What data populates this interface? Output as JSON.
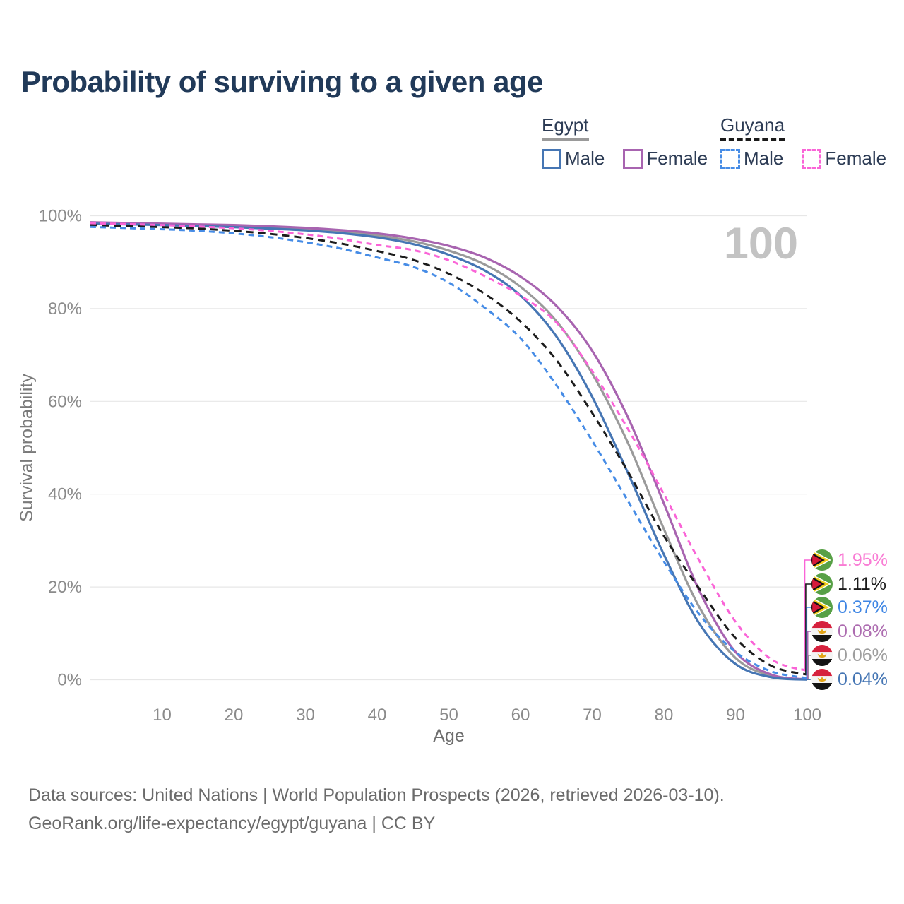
{
  "title": "Probability of surviving to a given age",
  "age_indicator": "100",
  "legend": {
    "groups": [
      {
        "label": "Egypt",
        "line_style": "solid",
        "underline_color": "#9a9a9a"
      },
      {
        "label": "Guyana",
        "line_style": "dashed",
        "underline_color": "#1a1a1a"
      }
    ],
    "items": [
      {
        "label": "Male",
        "group": "Egypt",
        "color": "#4676b4",
        "dashed": false
      },
      {
        "label": "Female",
        "group": "Egypt",
        "color": "#a864b0",
        "dashed": false
      },
      {
        "label": "Male",
        "group": "Guyana",
        "color": "#468ce6",
        "dashed": true
      },
      {
        "label": "Female",
        "group": "Guyana",
        "color": "#fa64d7",
        "dashed": true
      }
    ]
  },
  "chart_data": {
    "type": "line",
    "title": "Probability of surviving to a given age",
    "xlabel": "Age",
    "ylabel": "Survival probability",
    "xlim": [
      0,
      100
    ],
    "ylim": [
      0,
      100
    ],
    "grid": true,
    "x_ticks": [
      "10",
      "20",
      "30",
      "40",
      "50",
      "60",
      "70",
      "80",
      "90",
      "100"
    ],
    "y_ticks": [
      "0%",
      "20%",
      "40%",
      "60%",
      "80%",
      "100%"
    ],
    "ages": [
      0,
      5,
      10,
      15,
      20,
      25,
      30,
      35,
      40,
      45,
      50,
      55,
      60,
      65,
      70,
      75,
      80,
      85,
      90,
      95,
      100
    ],
    "series": [
      {
        "name": "Egypt Both sexes",
        "country": "Egypt",
        "sex": "Both sexes",
        "color": "#9a9a9a",
        "dashed": false,
        "values": [
          98.4,
          98.25,
          98.1,
          97.95,
          97.75,
          97.5,
          97.1,
          96.55,
          95.75,
          94.5,
          92.5,
          89.5,
          84.7,
          77.3,
          66.0,
          51.0,
          32.5,
          15.5,
          4.7,
          0.85,
          0.06
        ]
      },
      {
        "name": "Egypt Female",
        "country": "Egypt",
        "sex": "Female",
        "color": "#a864b0",
        "dashed": false,
        "values": [
          98.6,
          98.45,
          98.3,
          98.15,
          98.0,
          97.75,
          97.4,
          96.9,
          96.2,
          95.1,
          93.5,
          91.0,
          86.9,
          80.6,
          70.9,
          56.5,
          38.0,
          19.0,
          6.0,
          1.1,
          0.08
        ]
      },
      {
        "name": "Egypt Male",
        "country": "Egypt",
        "sex": "Male",
        "color": "#4676b4",
        "dashed": false,
        "values": [
          98.3,
          98.15,
          98.0,
          97.8,
          97.55,
          97.25,
          96.85,
          96.25,
          95.35,
          93.9,
          91.6,
          88.2,
          82.8,
          74.0,
          61.0,
          44.5,
          27.0,
          12.0,
          3.4,
          0.55,
          0.04
        ]
      },
      {
        "name": "Guyana Both sexes",
        "country": "Guyana",
        "sex": "Both sexes",
        "color": "#1c1c1c",
        "dashed": true,
        "values": [
          98.0,
          97.8,
          97.55,
          97.25,
          96.75,
          96.1,
          95.2,
          94.0,
          92.4,
          90.5,
          87.5,
          83.2,
          77.2,
          68.9,
          57.5,
          44.8,
          31.0,
          19.5,
          9.0,
          3.0,
          1.11
        ]
      },
      {
        "name": "Guyana Male",
        "country": "Guyana",
        "sex": "Male",
        "color": "#468ce6",
        "dashed": true,
        "values": [
          97.6,
          97.35,
          97.1,
          96.75,
          96.2,
          95.4,
          94.3,
          92.9,
          91.0,
          89.0,
          85.6,
          80.2,
          73.6,
          63.5,
          51.5,
          38.5,
          25.5,
          14.0,
          6.0,
          1.8,
          0.37
        ]
      },
      {
        "name": "Guyana Female",
        "country": "Guyana",
        "sex": "Female",
        "color": "#fa64d7",
        "dashed": true,
        "values": [
          98.4,
          98.2,
          98.0,
          97.7,
          97.3,
          96.75,
          96.0,
          95.0,
          93.7,
          92.6,
          90.4,
          87.0,
          82.8,
          77.0,
          66.5,
          54.0,
          40.0,
          25.5,
          12.5,
          4.4,
          1.95
        ]
      }
    ]
  },
  "end_labels": [
    {
      "value": "1.95%",
      "series": "Guyana Female",
      "flag": "guyana",
      "color": "#f97bd4"
    },
    {
      "value": "1.11%",
      "series": "Guyana Both sexes",
      "flag": "guyana",
      "color": "#1a1a1a"
    },
    {
      "value": "0.37%",
      "series": "Guyana Male",
      "flag": "guyana",
      "color": "#3f86e4"
    },
    {
      "value": "0.08%",
      "series": "Egypt Female",
      "flag": "egypt",
      "color": "#ad6cb0"
    },
    {
      "value": "0.06%",
      "series": "Egypt Both sexes",
      "flag": "egypt",
      "color": "#9e9e9e"
    },
    {
      "value": "0.04%",
      "series": "Egypt Male",
      "flag": "egypt",
      "color": "#4676b4"
    }
  ],
  "footer": {
    "line1": "Data sources: United Nations | World Population Prospects (2026, retrieved 2026-03-10).",
    "line2": "GeoRank.org/life-expectancy/egypt/guyana | CC BY"
  }
}
